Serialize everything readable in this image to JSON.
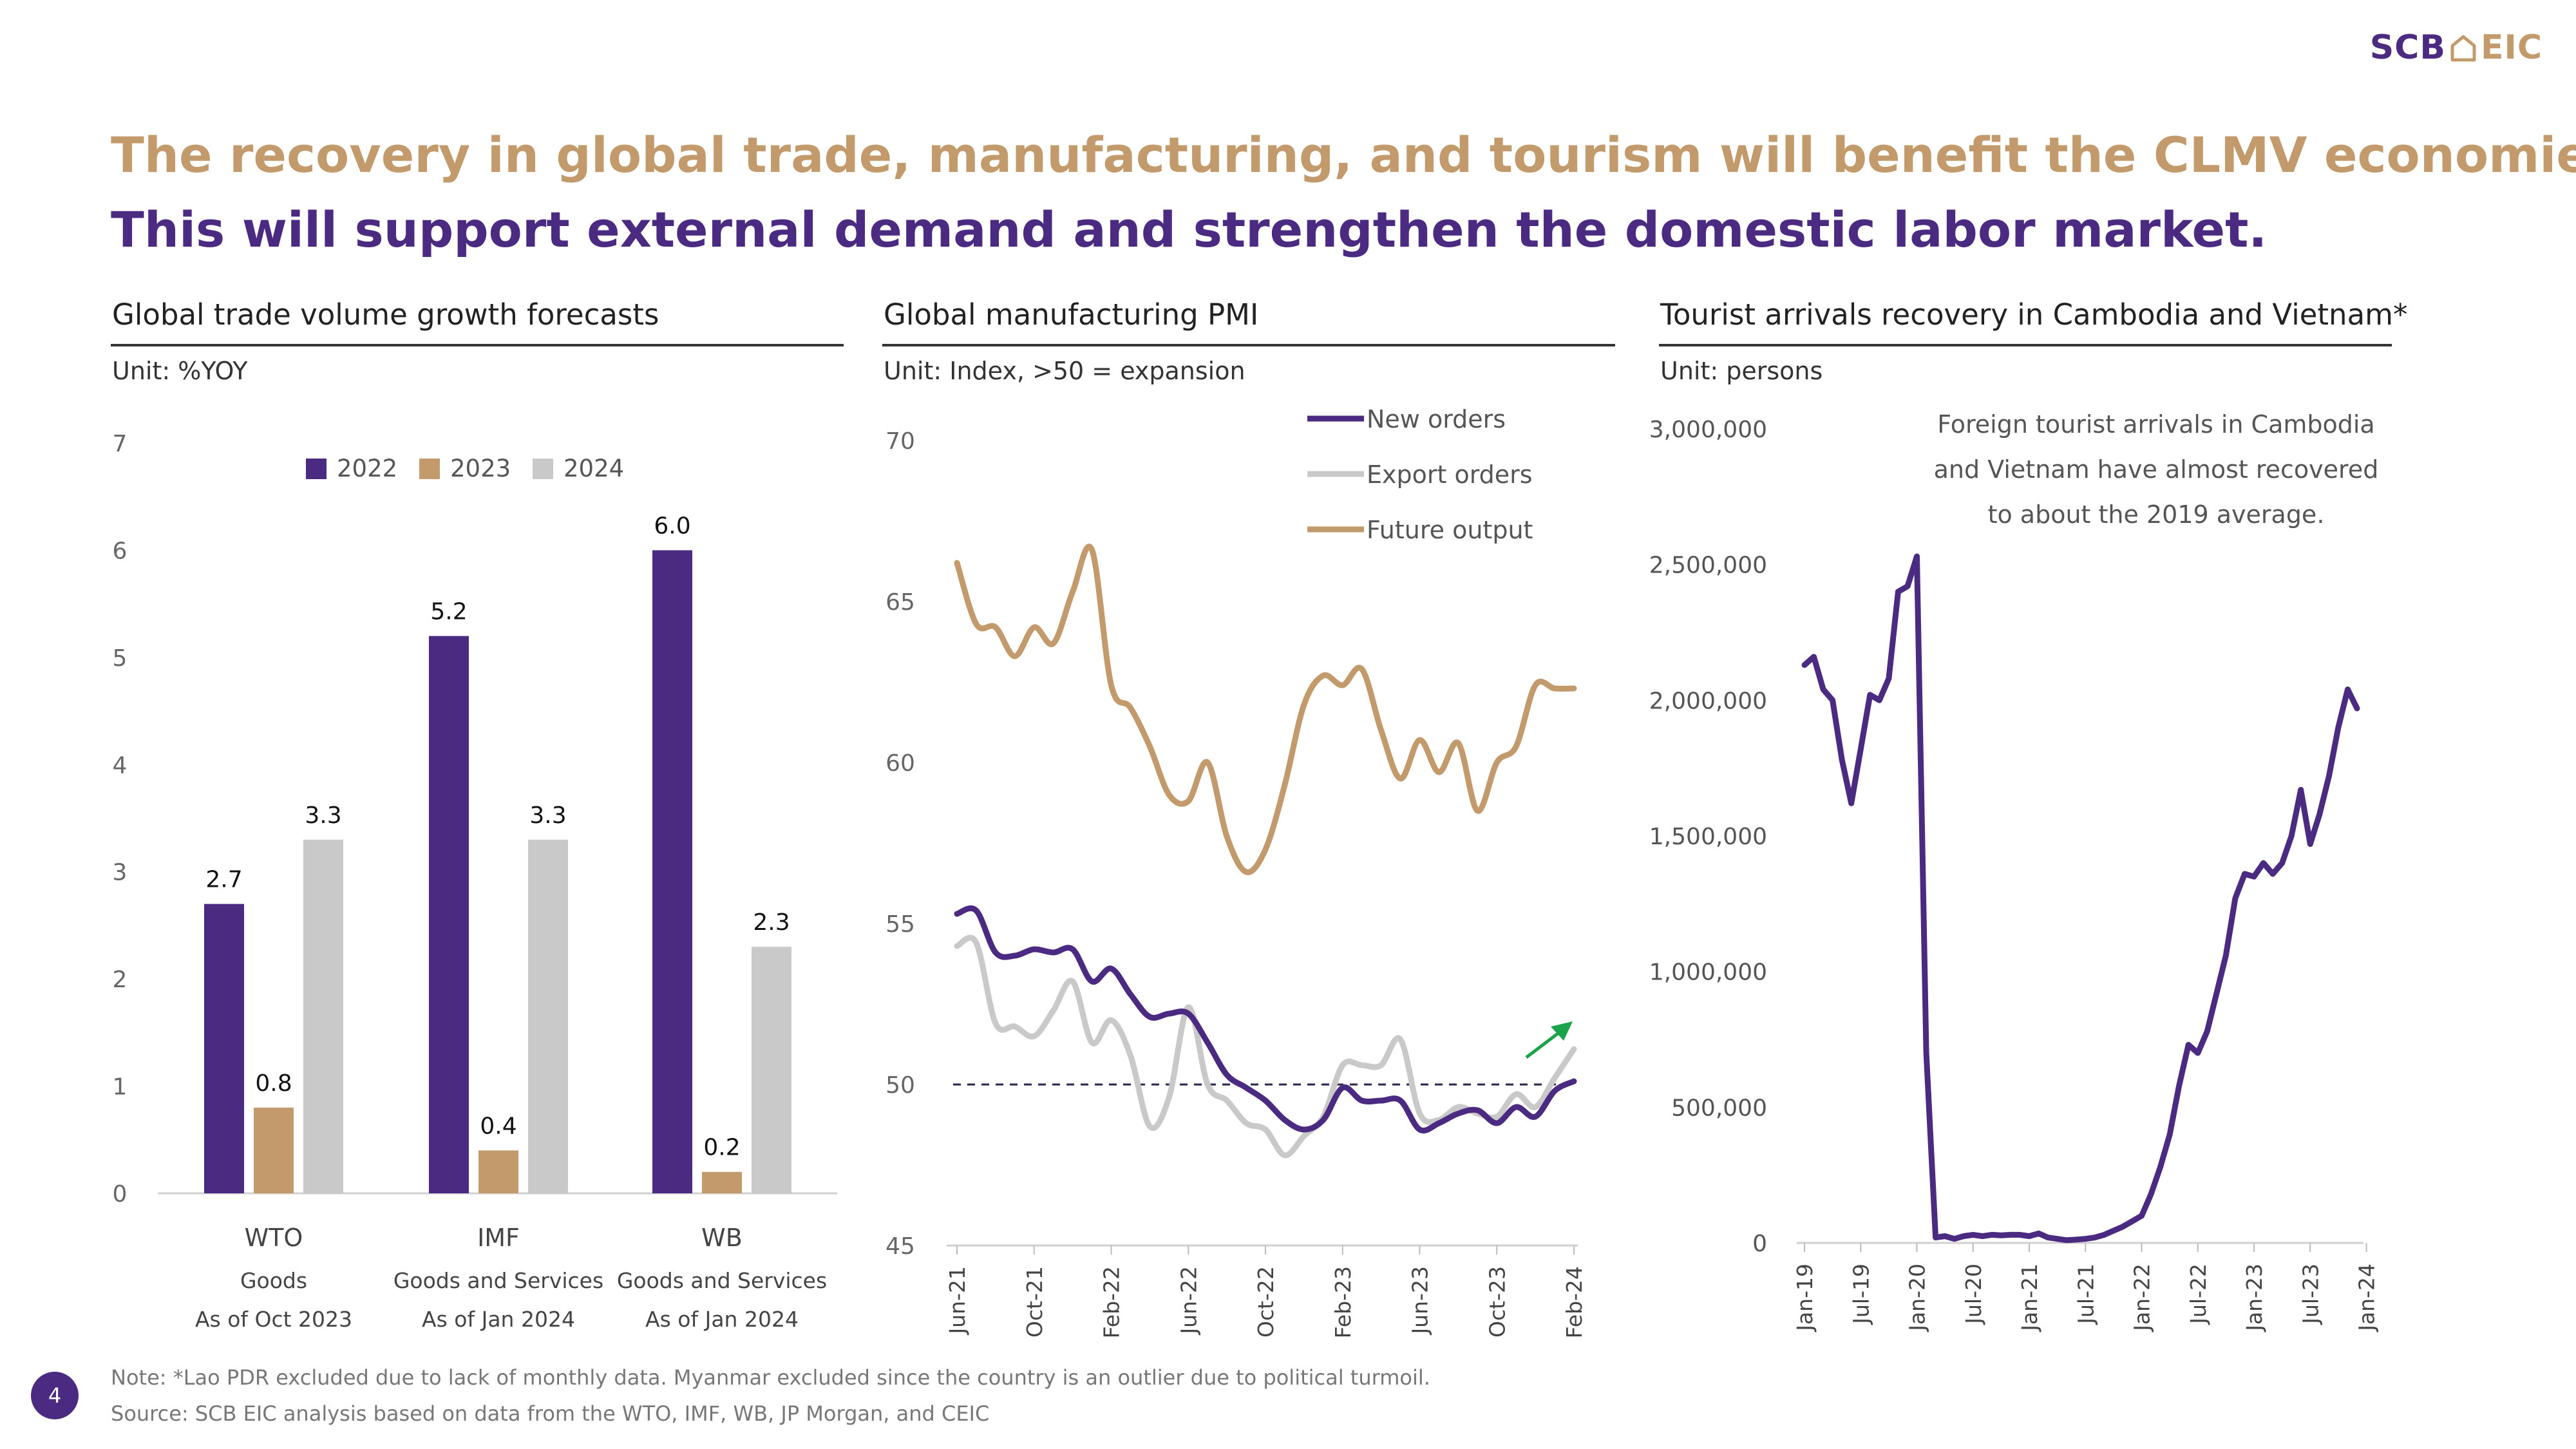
{
  "logo": {
    "left": "SCB",
    "icon": "house-icon",
    "right": "EIC"
  },
  "title_line1": "The recovery in global trade, manufacturing, and tourism will benefit the CLMV economies.",
  "title_line2": "This will support external demand and strengthen the domestic labor market.",
  "panels": {
    "trade": {
      "title": "Global trade volume growth forecasts",
      "unit": "Unit: %YOY"
    },
    "pmi": {
      "title": "Global manufacturing PMI",
      "unit": "Unit: Index, >50 = expansion"
    },
    "tourism": {
      "title": "Tourist arrivals recovery in Cambodia and Vietnam*",
      "unit": "Unit: persons",
      "annotation": [
        "Foreign tourist arrivals in Cambodia",
        "and Vietnam have almost recovered",
        "to about the 2019 average."
      ]
    }
  },
  "footer": {
    "note": "Note: *Lao PDR excluded due to lack of monthly data. Myanmar excluded since the country is an outlier due to political turmoil.",
    "source": "Source: SCB EIC analysis based on data from the WTO, IMF, WB, JP Morgan, and CEIC",
    "page": "4"
  },
  "colors": {
    "purple": "#4b2a82",
    "tan": "#c39a6b",
    "gray": "#c9c9c9",
    "green": "#1aa34a"
  },
  "chart_data": [
    {
      "type": "bar",
      "title": "Global trade volume growth forecasts",
      "ylabel": "%YOY",
      "ylim": [
        0,
        7
      ],
      "yticks": [
        "0",
        "1",
        "2",
        "3",
        "4",
        "5",
        "6",
        "7"
      ],
      "categories": [
        "WTO",
        "IMF",
        "WB"
      ],
      "category_sublabels": [
        [
          "Goods",
          "As of Oct 2023"
        ],
        [
          "Goods and Services",
          "As of Jan 2024"
        ],
        [
          "Goods and Services",
          "As of Jan 2024"
        ]
      ],
      "series": [
        {
          "name": "2022",
          "values": [
            2.7,
            5.2,
            6.0
          ],
          "labels": [
            "2.7",
            "5.2",
            "6.0"
          ]
        },
        {
          "name": "2023",
          "values": [
            0.8,
            0.4,
            0.2
          ],
          "labels": [
            "0.8",
            "0.4",
            "0.2"
          ]
        },
        {
          "name": "2024",
          "values": [
            3.3,
            3.3,
            2.3
          ],
          "labels": [
            "3.3",
            "3.3",
            "2.3"
          ]
        }
      ],
      "legend": "top-center"
    },
    {
      "type": "line",
      "title": "Global manufacturing PMI",
      "ylim": [
        45,
        70
      ],
      "yticks": [
        "45",
        "50",
        "55",
        "60",
        "65",
        "70"
      ],
      "x_start": "Jun-21",
      "xticks": [
        "Jun-21",
        "Oct-21",
        "Feb-22",
        "Jun-22",
        "Oct-22",
        "Feb-23",
        "Jun-23",
        "Oct-23",
        "Feb-24"
      ],
      "xtick_index": [
        0,
        4,
        8,
        12,
        16,
        20,
        24,
        28,
        32
      ],
      "reference_line": 50,
      "series": [
        {
          "name": "New orders",
          "values": [
            55.3,
            55.4,
            54.1,
            54.0,
            54.2,
            54.1,
            54.2,
            53.2,
            53.6,
            52.8,
            52.1,
            52.2,
            52.2,
            51.3,
            50.3,
            49.9,
            49.5,
            48.9,
            48.6,
            48.9,
            49.9,
            49.5,
            49.5,
            49.5,
            48.6,
            48.8,
            49.1,
            49.2,
            48.8,
            49.3,
            49.0,
            49.8,
            50.1
          ]
        },
        {
          "name": "Export orders",
          "values": [
            54.3,
            54.4,
            51.9,
            51.8,
            51.5,
            52.3,
            53.2,
            51.3,
            52.0,
            50.9,
            48.7,
            49.6,
            52.4,
            50.0,
            49.5,
            48.8,
            48.6,
            47.8,
            48.4,
            49.0,
            50.6,
            50.6,
            50.6,
            51.4,
            49.1,
            48.9,
            49.3,
            49.1,
            49.0,
            49.7,
            49.3,
            50.2,
            51.1
          ]
        },
        {
          "name": "Future output",
          "values": [
            66.2,
            64.3,
            64.2,
            63.3,
            64.2,
            63.7,
            65.3,
            66.6,
            62.4,
            61.7,
            60.5,
            59.0,
            58.8,
            60.0,
            57.7,
            56.6,
            57.3,
            59.3,
            61.8,
            62.7,
            62.4,
            62.9,
            61.0,
            59.5,
            60.7,
            59.7,
            60.6,
            58.5,
            60.0,
            60.5,
            62.4,
            62.3,
            62.3
          ]
        }
      ],
      "legend": "top-right",
      "annotation": "green upward arrow near Feb-24"
    },
    {
      "type": "line",
      "title": "Tourist arrivals recovery in Cambodia and Vietnam*",
      "ylim": [
        0,
        3000000
      ],
      "yticks": [
        "0",
        "500,000",
        "1,000,000",
        "1,500,000",
        "2,000,000",
        "2,500,000",
        "3,000,000"
      ],
      "x_start": "Jan-19",
      "xticks": [
        "Jan-19",
        "Jul-19",
        "Jan-20",
        "Jul-20",
        "Jan-21",
        "Jul-21",
        "Jan-22",
        "Jul-22",
        "Jan-23",
        "Jul-23",
        "Jan-24"
      ],
      "xtick_index": [
        0,
        6,
        12,
        18,
        24,
        30,
        36,
        42,
        48,
        54,
        60
      ],
      "series": [
        {
          "name": "Tourist arrivals",
          "values": [
            2130000,
            2160000,
            2040000,
            2000000,
            1780000,
            1620000,
            1820000,
            2020000,
            2000000,
            2080000,
            2400000,
            2420000,
            2530000,
            700000,
            20000,
            25000,
            15000,
            25000,
            30000,
            25000,
            30000,
            28000,
            30000,
            30000,
            25000,
            35000,
            20000,
            15000,
            10000,
            12000,
            15000,
            20000,
            30000,
            45000,
            60000,
            80000,
            100000,
            180000,
            280000,
            400000,
            580000,
            730000,
            700000,
            780000,
            920000,
            1060000,
            1270000,
            1360000,
            1350000,
            1400000,
            1360000,
            1400000,
            1500000,
            1670000,
            1470000,
            1580000,
            1720000,
            1900000,
            2040000,
            1970000
          ]
        }
      ]
    }
  ]
}
